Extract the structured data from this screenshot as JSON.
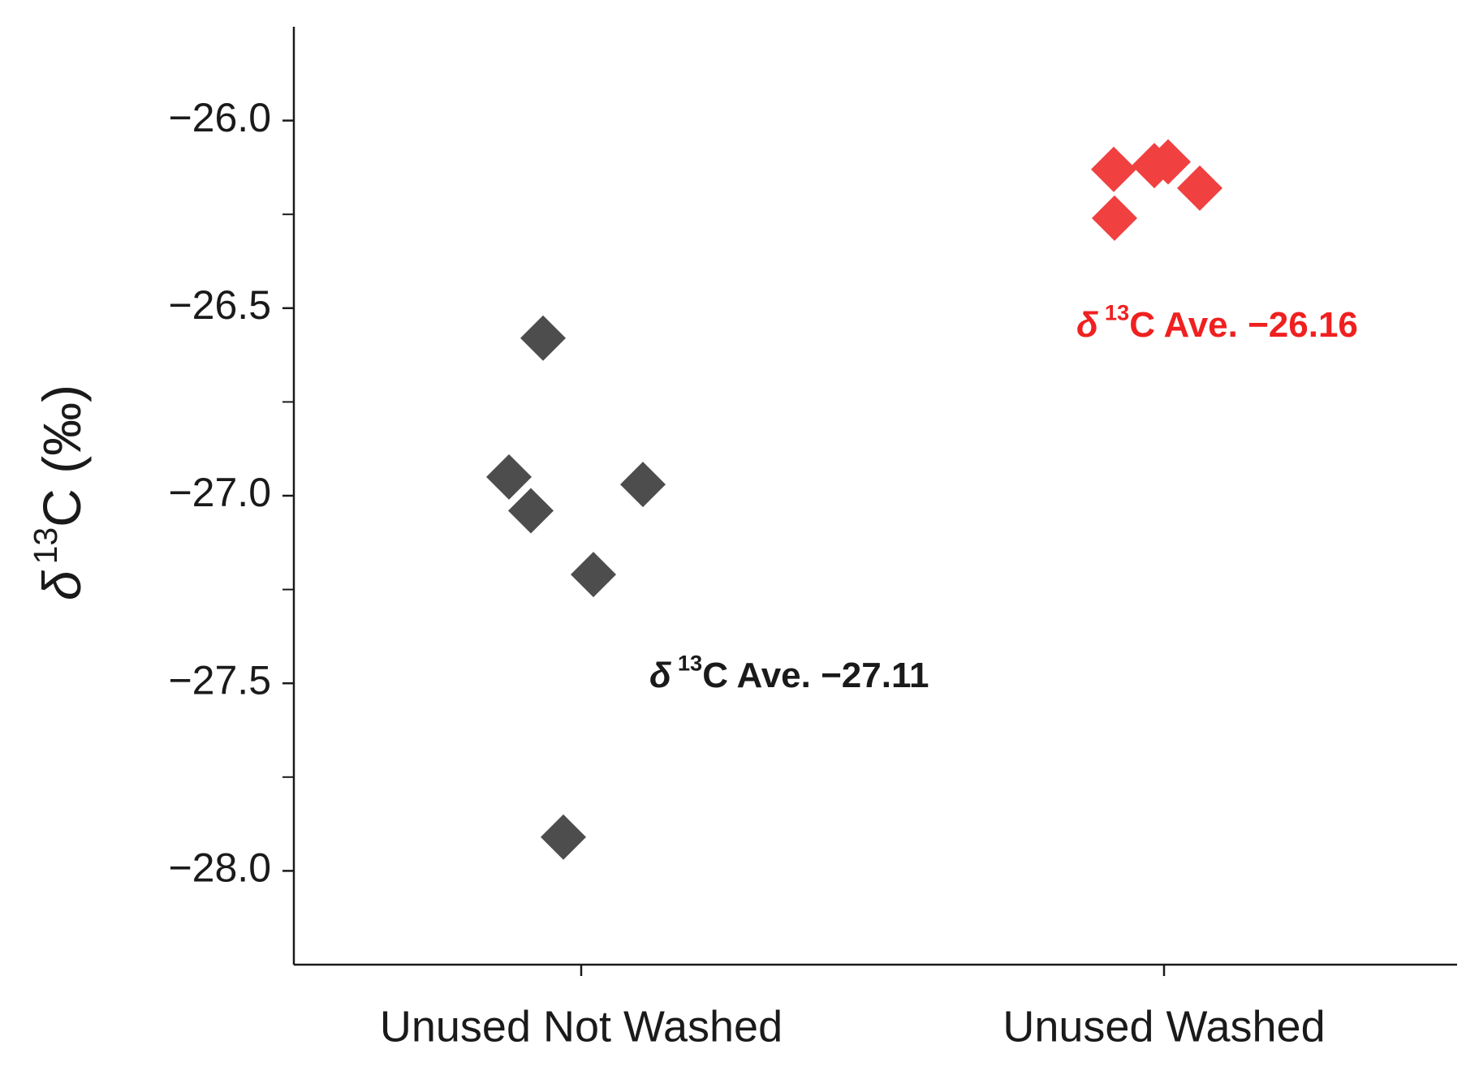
{
  "chart_data": {
    "type": "strip",
    "y_label": {
      "prefix": "δ",
      "sup": "13",
      "text": "C (‰)"
    },
    "categories": [
      "Unused Not Washed",
      "Unused Washed"
    ],
    "series": [
      {
        "color": "#4d4d4d",
        "values": [
          -26.58,
          -26.95,
          -27.04,
          -27.21,
          -26.97,
          -27.91
        ]
      },
      {
        "color": "#f04040",
        "values": [
          -26.13,
          -26.12,
          -26.11,
          -26.18,
          -26.26
        ]
      }
    ],
    "annotations": [
      {
        "prefix": "δ",
        "sup": "13",
        "text": "C Ave.  −27.11",
        "color": "#1a1a1a"
      },
      {
        "prefix": "δ",
        "sup": "13",
        "text": "C Ave.  −26.16",
        "color": "#f02020"
      }
    ],
    "ylim": [
      -28.25,
      -25.75
    ],
    "yticks": [
      {
        "value": -26,
        "label": "−26.0"
      },
      {
        "value": -26.5,
        "label": "−26.5"
      },
      {
        "value": -27,
        "label": "−27.0"
      },
      {
        "value": -27.5,
        "label": "−27.5"
      },
      {
        "value": -28,
        "label": "−28.0"
      }
    ],
    "minor_yticks": [
      -26.25,
      -26.75,
      -27.25,
      -27.75
    ],
    "grid": false
  }
}
